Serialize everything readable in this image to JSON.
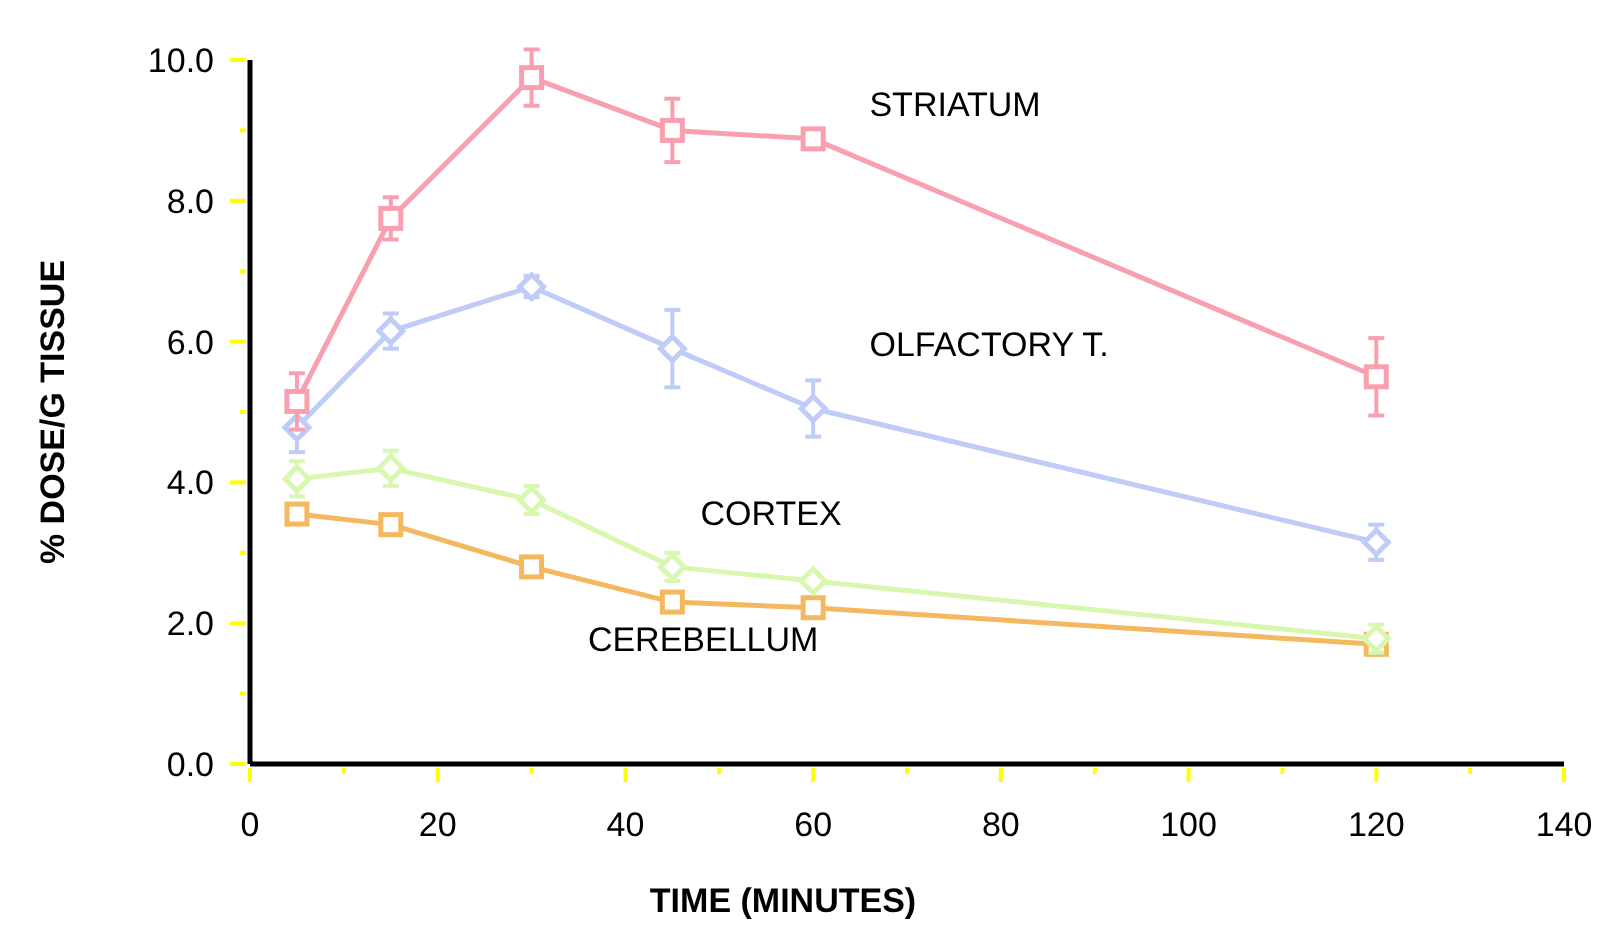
{
  "chart_data": {
    "type": "line",
    "xlabel": "TIME (MINUTES)",
    "ylabel": "% DOSE/G TISSUE",
    "x": [
      5,
      15,
      30,
      45,
      60,
      120
    ],
    "xlim": [
      0,
      140
    ],
    "xticks": [
      0,
      {
        "value": 10,
        "label": null
      },
      20,
      {
        "value": 30,
        "label": null
      },
      40,
      {
        "value": 50,
        "label": null
      },
      60,
      {
        "value": 70,
        "label": null
      },
      80,
      {
        "value": 90,
        "label": null
      },
      100,
      {
        "value": 110,
        "label": null
      },
      120,
      {
        "value": 130,
        "label": null
      },
      140
    ],
    "ylim": [
      0,
      10
    ],
    "yticks": [
      {
        "value": 0,
        "label": "0.0"
      },
      {
        "value": 1,
        "label": null
      },
      {
        "value": 2,
        "label": "2.0"
      },
      {
        "value": 3,
        "label": null
      },
      {
        "value": 4,
        "label": "4.0"
      },
      {
        "value": 5,
        "label": null
      },
      {
        "value": 6,
        "label": "6.0"
      },
      {
        "value": 7,
        "label": null
      },
      {
        "value": 8,
        "label": "8.0"
      },
      {
        "value": 9,
        "label": null
      },
      {
        "value": 10,
        "label": "10.0"
      }
    ],
    "grid": false,
    "series": [
      {
        "name": "STRIATUM",
        "color": "#f9a0b0",
        "marker": "square",
        "values": [
          5.15,
          7.75,
          9.75,
          9.0,
          8.88,
          5.5
        ],
        "errors": [
          0.4,
          0.3,
          0.4,
          0.45,
          0.1,
          0.55
        ]
      },
      {
        "name": "OLFACTORY T.",
        "color": "#c0ccf8",
        "marker": "diamond",
        "values": [
          4.78,
          6.15,
          6.78,
          5.9,
          5.05,
          3.15
        ],
        "errors": [
          0.35,
          0.25,
          0.15,
          0.55,
          0.4,
          0.25
        ]
      },
      {
        "name": "CORTEX",
        "color": "#d8f8b0",
        "marker": "diamond",
        "values": [
          4.05,
          4.2,
          3.75,
          2.8,
          2.6,
          1.78
        ],
        "errors": [
          0.25,
          0.25,
          0.2,
          0.2,
          null,
          0.2
        ]
      },
      {
        "name": "CEREBELLUM",
        "color": "#f4b860",
        "marker": "square",
        "values": [
          3.55,
          3.4,
          2.8,
          2.3,
          2.22,
          1.7
        ],
        "errors": [
          0.12,
          null,
          null,
          0.12,
          null,
          null
        ]
      }
    ]
  }
}
